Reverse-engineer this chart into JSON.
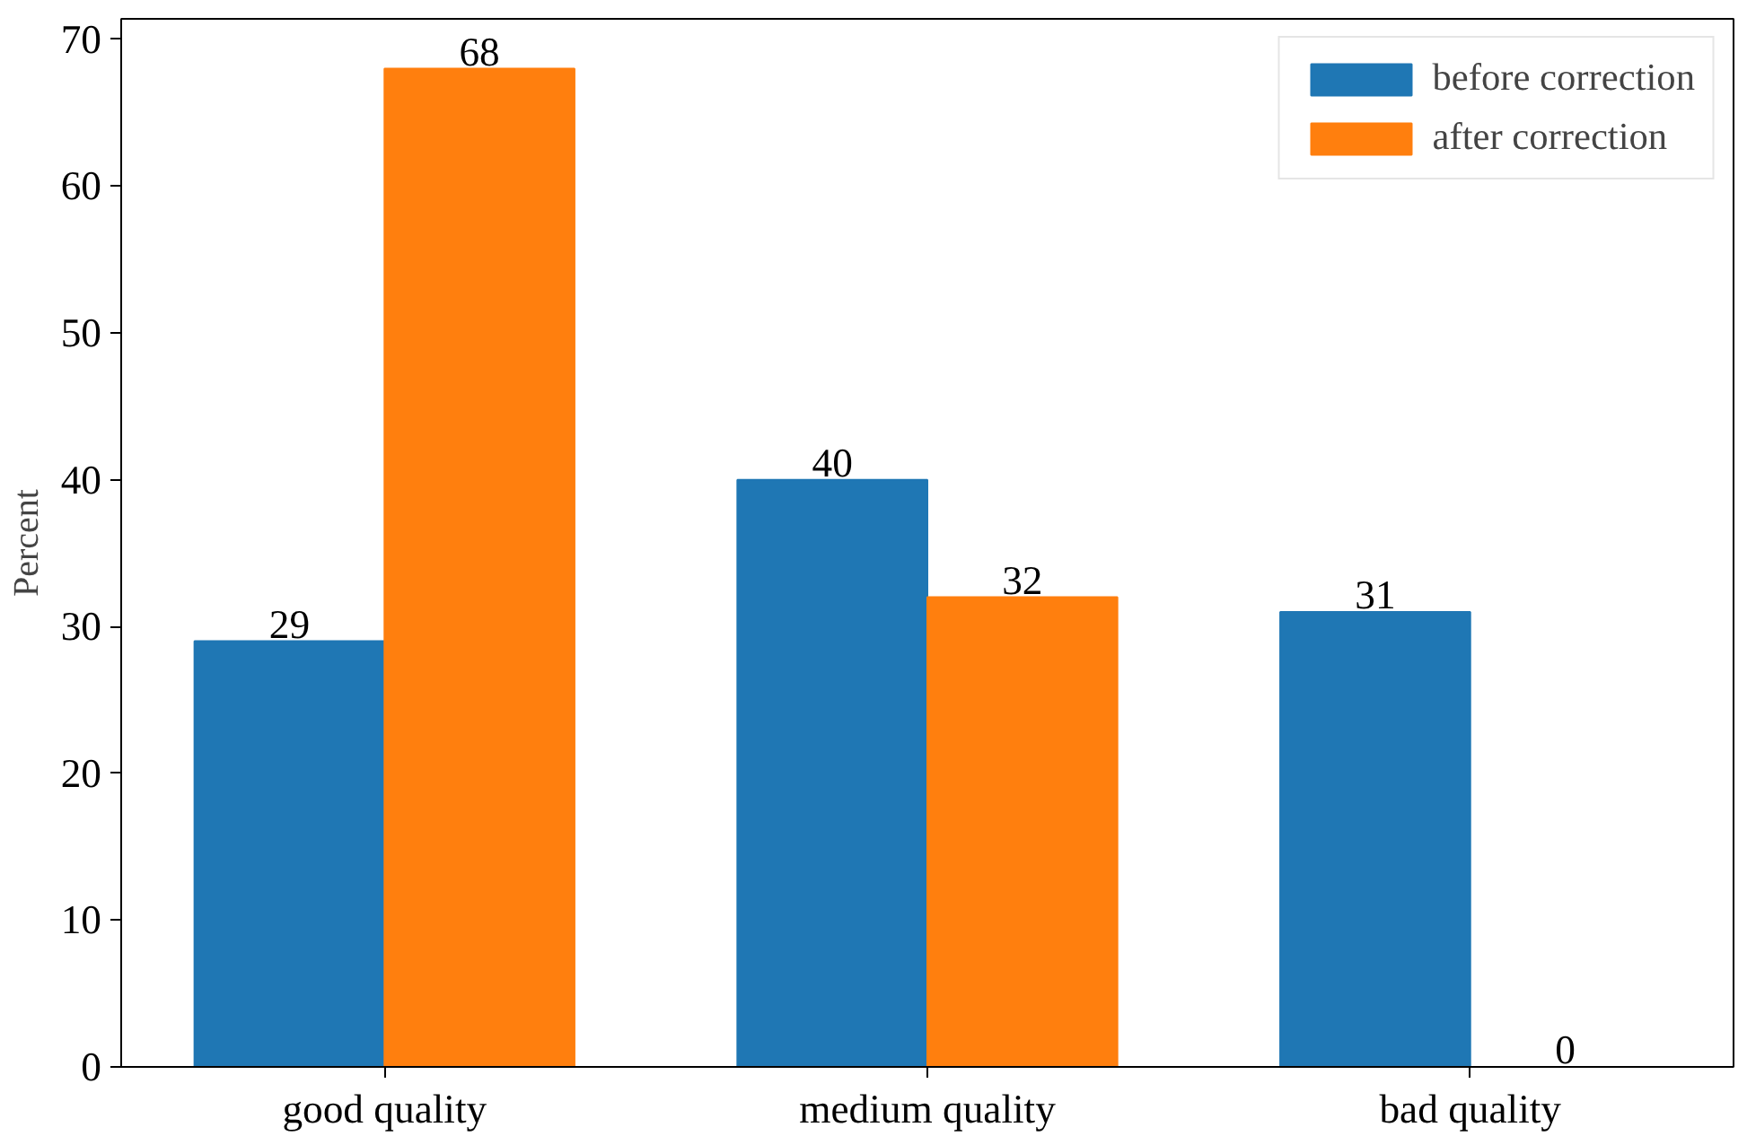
{
  "chart_data": {
    "type": "bar",
    "ylabel": "Percent",
    "categories": [
      "good quality",
      "medium quality",
      "bad quality"
    ],
    "series": [
      {
        "name": "before correction",
        "color": "#1f77b4",
        "values": [
          29,
          40,
          31
        ]
      },
      {
        "name": "after correction",
        "color": "#ff7f0e",
        "values": [
          68,
          32,
          0
        ]
      }
    ],
    "ylim": [
      0,
      71.4
    ],
    "yticks": [
      0,
      10,
      20,
      30,
      40,
      50,
      60,
      70
    ],
    "data_labels": true,
    "legend": "top right",
    "grid": false
  }
}
